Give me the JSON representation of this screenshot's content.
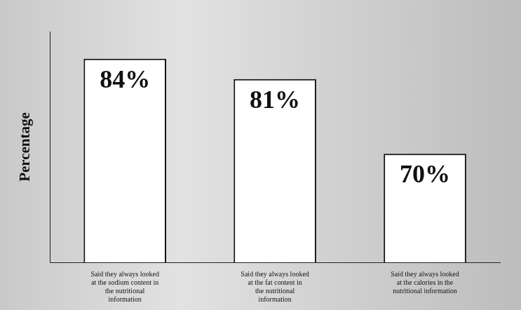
{
  "chart_data": {
    "type": "bar",
    "ylabel": "Percentage",
    "categories": [
      "Said they always looked at the sodium content in the nutritional information",
      "Said they always looked at the fat content in the nutritional information",
      "Said they always looked at the calories in the nutritional information"
    ],
    "values": [
      84,
      81,
      70
    ],
    "value_labels": [
      "84%",
      "81%",
      "70%"
    ],
    "color": "#ffffff",
    "ylim": [
      54,
      88
    ],
    "grid": false,
    "data_labels": true,
    "tick_labels": "x"
  }
}
